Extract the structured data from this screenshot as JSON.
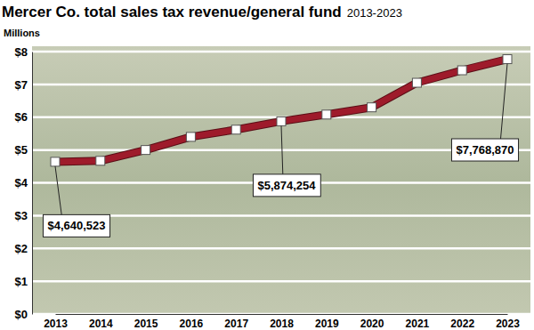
{
  "chart_data": {
    "type": "line",
    "title": "Mercer Co. total sales tax revenue/general fund",
    "subtitle": "2013-2023",
    "y_label": "Millions",
    "categories": [
      "2013",
      "2014",
      "2015",
      "2016",
      "2017",
      "2018",
      "2019",
      "2020",
      "2021",
      "2022",
      "2023"
    ],
    "values": [
      4.640523,
      4.67,
      5.0,
      5.4,
      5.62,
      5.874254,
      6.08,
      6.3,
      7.05,
      7.43,
      7.76887
    ],
    "value_labels": [
      "$4,640,523",
      null,
      null,
      null,
      null,
      "$5,874,254",
      null,
      null,
      null,
      null,
      "$7,768,870"
    ],
    "color": "#9e1b2b",
    "marker": "square",
    "ylim": [
      0,
      8
    ],
    "yticks": [
      {
        "value": 0,
        "label": "$0"
      },
      {
        "value": 1,
        "label": "$1"
      },
      {
        "value": 2,
        "label": "$2"
      },
      {
        "value": 3,
        "label": "$3"
      },
      {
        "value": 4,
        "label": "$4"
      },
      {
        "value": 5,
        "label": "$5"
      },
      {
        "value": 6,
        "label": "$6"
      },
      {
        "value": 7,
        "label": "$7"
      },
      {
        "value": 8,
        "label": "$8"
      }
    ],
    "grid": true
  }
}
